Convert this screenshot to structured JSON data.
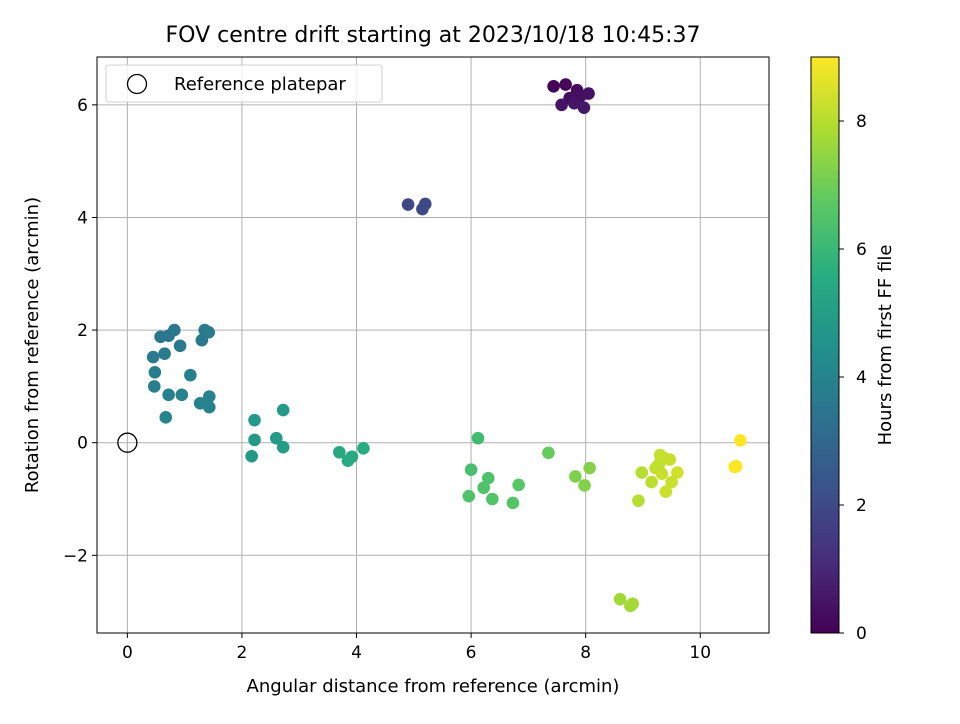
{
  "chart_data": {
    "type": "scatter",
    "title": "FOV centre drift starting at 2023/10/18 10:45:37",
    "xlabel": "Angular distance from reference (arcmin)",
    "ylabel": "Rotation from reference (arcmin)",
    "xlim": [
      -0.53,
      11.2
    ],
    "ylim": [
      -3.38,
      6.85
    ],
    "xticks": [
      0,
      2,
      4,
      6,
      8,
      10
    ],
    "xtick_labels": [
      "0",
      "2",
      "4",
      "6",
      "8",
      "10"
    ],
    "yticks": [
      -2,
      0,
      2,
      4,
      6
    ],
    "ytick_labels": [
      "−2",
      "0",
      "2",
      "4",
      "6"
    ],
    "grid": true,
    "legend": {
      "placement": "top-left",
      "entries": [
        {
          "label": "Reference platepar",
          "marker": "open-circle"
        }
      ]
    },
    "reference_point": {
      "x": 0,
      "y": 0
    },
    "colorbar": {
      "label": "Hours from first FF file",
      "colormap": "viridis",
      "range": [
        0,
        9.0
      ],
      "ticks": [
        0,
        2,
        4,
        6,
        8
      ],
      "tick_labels": [
        "0",
        "2",
        "4",
        "6",
        "8"
      ]
    },
    "points": [
      {
        "x": 7.44,
        "y": 6.33,
        "h": 0.05
      },
      {
        "x": 7.65,
        "y": 6.36,
        "h": 0.15
      },
      {
        "x": 7.85,
        "y": 6.26,
        "h": 0.25
      },
      {
        "x": 7.72,
        "y": 6.12,
        "h": 0.3
      },
      {
        "x": 7.9,
        "y": 6.15,
        "h": 0.35
      },
      {
        "x": 8.05,
        "y": 6.2,
        "h": 0.4
      },
      {
        "x": 7.58,
        "y": 6.0,
        "h": 0.45
      },
      {
        "x": 7.8,
        "y": 6.03,
        "h": 0.5
      },
      {
        "x": 7.97,
        "y": 5.95,
        "h": 0.55
      },
      {
        "x": 4.9,
        "y": 4.23,
        "h": 1.9
      },
      {
        "x": 5.15,
        "y": 4.15,
        "h": 1.95
      },
      {
        "x": 5.2,
        "y": 4.24,
        "h": 2.0
      },
      {
        "x": 0.58,
        "y": 1.88,
        "h": 3.55
      },
      {
        "x": 0.72,
        "y": 1.9,
        "h": 3.5
      },
      {
        "x": 0.82,
        "y": 2.0,
        "h": 3.55
      },
      {
        "x": 0.92,
        "y": 1.72,
        "h": 3.6
      },
      {
        "x": 1.3,
        "y": 1.82,
        "h": 3.6
      },
      {
        "x": 1.35,
        "y": 2.0,
        "h": 3.65
      },
      {
        "x": 1.42,
        "y": 1.96,
        "h": 3.7
      },
      {
        "x": 0.45,
        "y": 1.52,
        "h": 3.7
      },
      {
        "x": 0.65,
        "y": 1.58,
        "h": 3.75
      },
      {
        "x": 0.48,
        "y": 1.25,
        "h": 3.8
      },
      {
        "x": 0.47,
        "y": 1.0,
        "h": 3.85
      },
      {
        "x": 1.1,
        "y": 1.2,
        "h": 3.9
      },
      {
        "x": 0.72,
        "y": 0.85,
        "h": 3.9
      },
      {
        "x": 0.95,
        "y": 0.85,
        "h": 3.95
      },
      {
        "x": 1.27,
        "y": 0.7,
        "h": 3.95
      },
      {
        "x": 1.43,
        "y": 0.82,
        "h": 4.0
      },
      {
        "x": 1.43,
        "y": 0.63,
        "h": 4.0
      },
      {
        "x": 0.67,
        "y": 0.45,
        "h": 4.05
      },
      {
        "x": 2.22,
        "y": 0.4,
        "h": 4.8
      },
      {
        "x": 2.72,
        "y": 0.58,
        "h": 4.9
      },
      {
        "x": 2.22,
        "y": 0.05,
        "h": 4.85
      },
      {
        "x": 2.6,
        "y": 0.08,
        "h": 4.9
      },
      {
        "x": 2.72,
        "y": -0.08,
        "h": 4.95
      },
      {
        "x": 2.17,
        "y": -0.24,
        "h": 4.85
      },
      {
        "x": 3.7,
        "y": -0.17,
        "h": 5.4
      },
      {
        "x": 3.85,
        "y": -0.32,
        "h": 5.45
      },
      {
        "x": 3.92,
        "y": -0.25,
        "h": 5.45
      },
      {
        "x": 4.12,
        "y": -0.1,
        "h": 5.5
      },
      {
        "x": 6.12,
        "y": 0.08,
        "h": 6.15
      },
      {
        "x": 6.0,
        "y": -0.48,
        "h": 6.3
      },
      {
        "x": 6.3,
        "y": -0.63,
        "h": 6.4
      },
      {
        "x": 6.22,
        "y": -0.8,
        "h": 6.45
      },
      {
        "x": 6.37,
        "y": -1.0,
        "h": 6.5
      },
      {
        "x": 5.96,
        "y": -0.95,
        "h": 6.45
      },
      {
        "x": 6.73,
        "y": -1.07,
        "h": 6.55
      },
      {
        "x": 6.83,
        "y": -0.75,
        "h": 6.6
      },
      {
        "x": 7.35,
        "y": -0.18,
        "h": 6.85
      },
      {
        "x": 7.82,
        "y": -0.6,
        "h": 7.2
      },
      {
        "x": 7.98,
        "y": -0.76,
        "h": 7.25
      },
      {
        "x": 8.07,
        "y": -0.45,
        "h": 7.3
      },
      {
        "x": 8.6,
        "y": -2.78,
        "h": 7.7
      },
      {
        "x": 8.78,
        "y": -2.9,
        "h": 7.75
      },
      {
        "x": 8.82,
        "y": -2.86,
        "h": 7.75
      },
      {
        "x": 8.98,
        "y": -0.53,
        "h": 8.0
      },
      {
        "x": 8.92,
        "y": -1.03,
        "h": 8.0
      },
      {
        "x": 9.15,
        "y": -0.7,
        "h": 8.1
      },
      {
        "x": 9.22,
        "y": -0.45,
        "h": 8.15
      },
      {
        "x": 9.3,
        "y": -0.22,
        "h": 8.2
      },
      {
        "x": 9.38,
        "y": -0.28,
        "h": 8.2
      },
      {
        "x": 9.47,
        "y": -0.3,
        "h": 8.25
      },
      {
        "x": 9.33,
        "y": -0.55,
        "h": 8.25
      },
      {
        "x": 9.5,
        "y": -0.7,
        "h": 8.3
      },
      {
        "x": 9.4,
        "y": -0.87,
        "h": 8.3
      },
      {
        "x": 9.6,
        "y": -0.53,
        "h": 8.35
      },
      {
        "x": 9.28,
        "y": -0.38,
        "h": 8.15
      },
      {
        "x": 10.6,
        "y": -0.43,
        "h": 8.95
      },
      {
        "x": 10.63,
        "y": -0.42,
        "h": 8.98
      },
      {
        "x": 10.7,
        "y": 0.04,
        "h": 9.0
      }
    ]
  }
}
